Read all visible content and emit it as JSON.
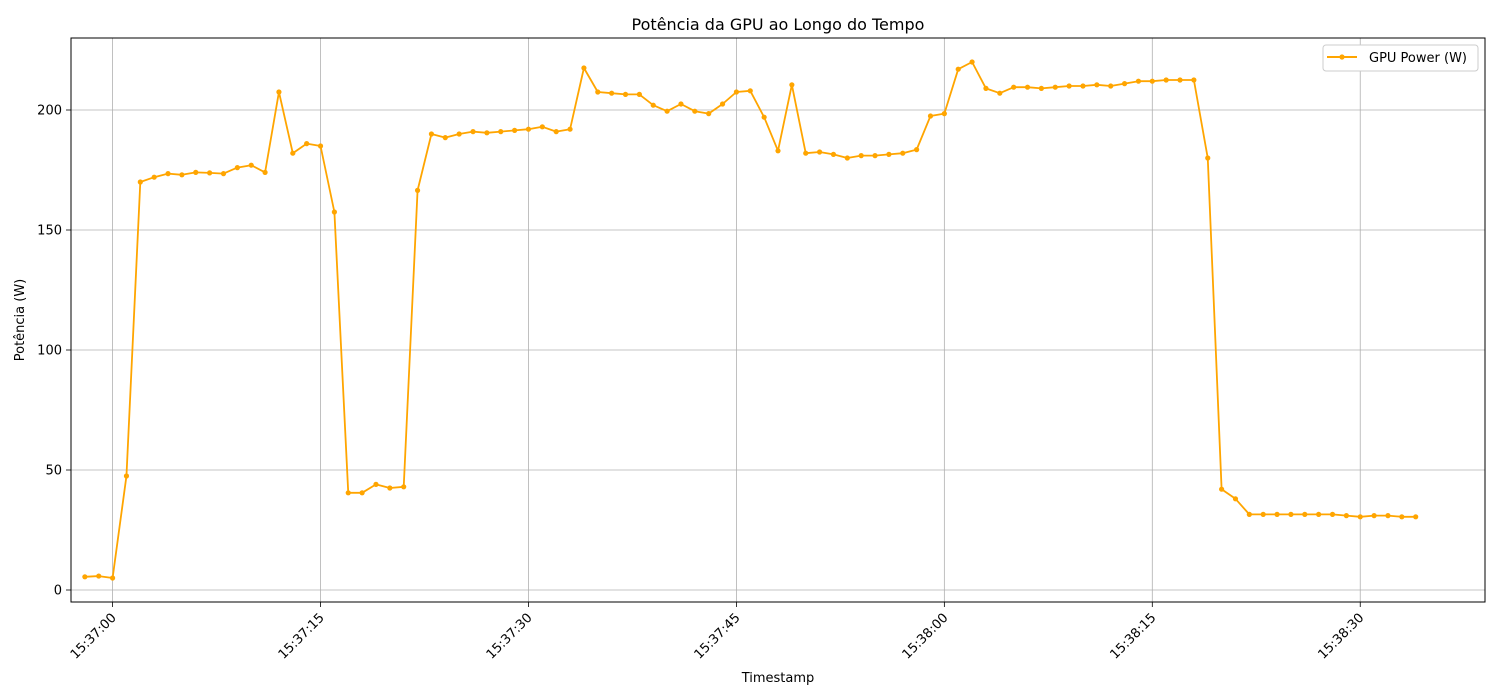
{
  "chart_data": {
    "type": "line",
    "title": "Potência da GPU ao Longo do Tempo",
    "xlabel": "Timestamp",
    "ylabel": "Potência (W)",
    "ylim": [
      -5,
      230
    ],
    "x_start": "15:36:57",
    "x_end": "15:38:39",
    "x_ticks": [
      "15:37:00",
      "15:37:15",
      "15:37:30",
      "15:37:45",
      "15:38:00",
      "15:38:15",
      "15:38:30"
    ],
    "y_ticks": [
      0,
      50,
      100,
      150,
      200
    ],
    "grid": true,
    "legend_position": "top-right",
    "line_color": "#ffa500",
    "series": [
      {
        "name": "GPU Power (W)",
        "x": [
          "15:36:58",
          "15:36:59",
          "15:37:00",
          "15:37:01",
          "15:37:02",
          "15:37:03",
          "15:37:04",
          "15:37:05",
          "15:37:06",
          "15:37:07",
          "15:37:08",
          "15:37:09",
          "15:37:10",
          "15:37:11",
          "15:37:12",
          "15:37:13",
          "15:37:14",
          "15:37:15",
          "15:37:16",
          "15:37:17",
          "15:37:18",
          "15:37:19",
          "15:37:20",
          "15:37:21",
          "15:37:22",
          "15:37:23",
          "15:37:24",
          "15:37:25",
          "15:37:26",
          "15:37:27",
          "15:37:28",
          "15:37:29",
          "15:37:30",
          "15:37:31",
          "15:37:32",
          "15:37:33",
          "15:37:34",
          "15:37:35",
          "15:37:36",
          "15:37:37",
          "15:37:38",
          "15:37:39",
          "15:37:40",
          "15:37:41",
          "15:37:42",
          "15:37:43",
          "15:37:44",
          "15:37:45",
          "15:37:46",
          "15:37:47",
          "15:37:48",
          "15:37:49",
          "15:37:50",
          "15:37:51",
          "15:37:52",
          "15:37:53",
          "15:37:54",
          "15:37:55",
          "15:37:56",
          "15:37:57",
          "15:37:58",
          "15:37:59",
          "15:38:00",
          "15:38:01",
          "15:38:02",
          "15:38:03",
          "15:38:04",
          "15:38:05",
          "15:38:06",
          "15:38:07",
          "15:38:08",
          "15:38:09",
          "15:38:10",
          "15:38:11",
          "15:38:12",
          "15:38:13",
          "15:38:14",
          "15:38:15",
          "15:38:16",
          "15:38:17",
          "15:38:18",
          "15:38:19",
          "15:38:20",
          "15:38:21",
          "15:38:22",
          "15:38:23",
          "15:38:24",
          "15:38:25",
          "15:38:26",
          "15:38:27",
          "15:38:28",
          "15:38:29",
          "15:38:30",
          "15:38:31",
          "15:38:32",
          "15:38:33",
          "15:38:34"
        ],
        "values": [
          5.5,
          5.8,
          5.0,
          47.5,
          170.0,
          172.0,
          173.5,
          173.0,
          174.0,
          173.8,
          173.5,
          176.0,
          177.0,
          174.0,
          207.5,
          182.0,
          186.0,
          185.0,
          157.5,
          40.5,
          40.5,
          44.0,
          42.5,
          43.0,
          166.5,
          190.0,
          188.5,
          190.0,
          191.0,
          190.5,
          191.0,
          191.5,
          192.0,
          193.0,
          191.0,
          192.0,
          217.5,
          207.5,
          207.0,
          206.5,
          206.5,
          202.0,
          199.5,
          202.5,
          199.5,
          198.5,
          202.5,
          207.5,
          208.0,
          197.0,
          183.0,
          210.5,
          182.0,
          182.5,
          181.5,
          180.0,
          181.0,
          181.0,
          181.5,
          182.0,
          183.5,
          197.5,
          198.5,
          217.0,
          220.0,
          209.0,
          207.0,
          209.5,
          209.5,
          209.0,
          209.5,
          210.0,
          210.0,
          210.5,
          210.0,
          211.0,
          212.0,
          212.0,
          212.5,
          212.5,
          212.5,
          180.0,
          42.0,
          38.0,
          31.5,
          31.5,
          31.5,
          31.5,
          31.5,
          31.5,
          31.5,
          31.0,
          30.5,
          31.0,
          31.0,
          30.5,
          30.5
        ]
      }
    ]
  }
}
